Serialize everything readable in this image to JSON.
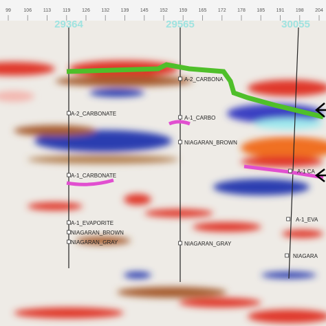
{
  "header": {
    "ticks": [
      "99",
      "106",
      "113",
      "119",
      "126",
      "132",
      "139",
      "145",
      "152",
      "159",
      "165",
      "172",
      "178",
      "185",
      "191",
      "198",
      "204"
    ]
  },
  "wells": [
    {
      "name": "29364",
      "picks": [
        "A-2_CARBONATE",
        "A-1_CARBONATE",
        "A-1_EVAPORITE",
        "NIAGARAN_BROWN",
        "NIAGARAN_GRAY"
      ]
    },
    {
      "name": "29565",
      "picks": [
        "A-2_CARBONA",
        "A-1_CARBO",
        "NIAGARAN_BROWN",
        "NIAGARAN_GRAY"
      ]
    },
    {
      "name": "30055",
      "picks": [
        "A-1 CA",
        "A-1_EVA",
        "NIAGARA"
      ]
    }
  ]
}
